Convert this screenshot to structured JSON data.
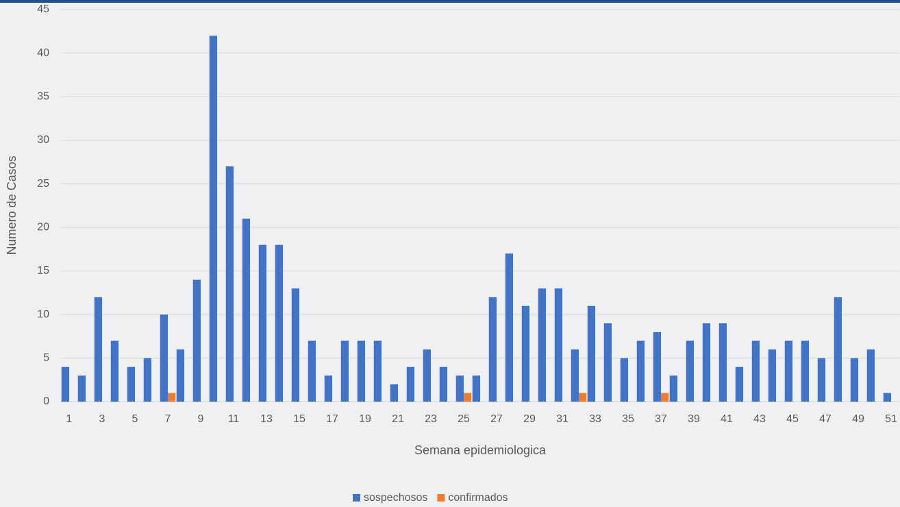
{
  "chart_data": {
    "type": "bar",
    "x_label": "Semana epidemiologica",
    "y_label": "Numero de Casos",
    "categories": [
      1,
      null,
      3,
      null,
      5,
      null,
      7,
      null,
      9,
      null,
      11,
      null,
      13,
      null,
      15,
      null,
      17,
      null,
      19,
      null,
      21,
      null,
      23,
      null,
      25,
      null,
      27,
      null,
      29,
      null,
      31,
      null,
      33,
      null,
      35,
      null,
      37,
      null,
      39,
      null,
      41,
      null,
      43,
      null,
      45,
      null,
      47,
      null,
      49,
      null,
      51
    ],
    "series": [
      {
        "name": "sospechosos",
        "color": "#4472c4",
        "values": [
          4,
          3,
          12,
          7,
          4,
          5,
          10,
          6,
          14,
          42,
          27,
          21,
          18,
          18,
          13,
          7,
          3,
          7,
          7,
          7,
          2,
          4,
          6,
          4,
          3,
          3,
          12,
          17,
          11,
          13,
          13,
          6,
          11,
          9,
          5,
          7,
          8,
          3,
          7,
          9,
          9,
          4,
          7,
          6,
          7,
          7,
          5,
          12,
          5,
          6,
          1
        ]
      },
      {
        "name": "confirmados",
        "color": "#ed7d31",
        "values": [
          0,
          0,
          0,
          0,
          0,
          0,
          1,
          0,
          0,
          0,
          0,
          0,
          0,
          0,
          0,
          0,
          0,
          0,
          0,
          0,
          0,
          0,
          0,
          0,
          1,
          0,
          0,
          0,
          0,
          0,
          0,
          1,
          0,
          0,
          0,
          0,
          1,
          0,
          0,
          0,
          0,
          0,
          0,
          0,
          0,
          0,
          0,
          0,
          0,
          0,
          0
        ]
      }
    ],
    "ylim": [
      0,
      45
    ],
    "yticks": [
      0,
      5,
      10,
      15,
      20,
      25,
      30,
      35,
      40,
      45
    ],
    "grid": true,
    "legend": "bottom"
  }
}
